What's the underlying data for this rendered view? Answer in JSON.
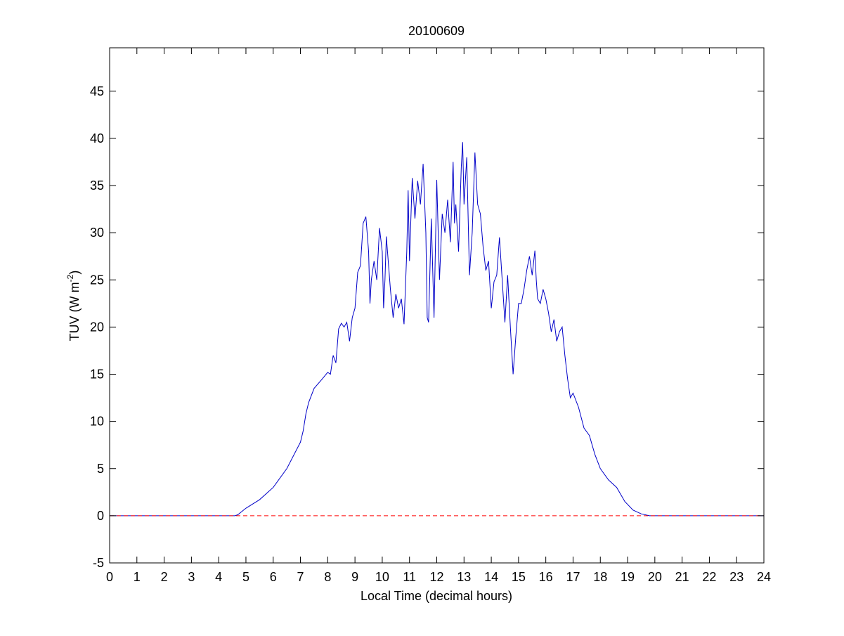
{
  "chart_data": {
    "type": "line",
    "title": "20100609",
    "xlabel": "Local Time (decimal hours)",
    "ylabel": {
      "base": "TUV (W m",
      "sup": "-2",
      "end": ")"
    },
    "xlim": [
      0,
      24
    ],
    "xticks": [
      0,
      1,
      2,
      3,
      4,
      5,
      6,
      7,
      8,
      9,
      10,
      11,
      12,
      13,
      14,
      15,
      16,
      17,
      18,
      19,
      20,
      21,
      22,
      23,
      24
    ],
    "ylim": [
      -5,
      49.6
    ],
    "yticks": [
      -5,
      0,
      5,
      10,
      15,
      20,
      25,
      30,
      35,
      40,
      45
    ],
    "series": [
      {
        "color": "#0000c8",
        "dash": false,
        "x": [
          0,
          1,
          2,
          3,
          4,
          4.6,
          4.7,
          5,
          5.5,
          6,
          6.5,
          7,
          7.1,
          7.2,
          7.3,
          7.5,
          7.8,
          8,
          8.1,
          8.2,
          8.3,
          8.4,
          8.5,
          8.6,
          8.7,
          8.8,
          8.9,
          9,
          9.1,
          9.2,
          9.3,
          9.4,
          9.5,
          9.55,
          9.6,
          9.7,
          9.8,
          9.9,
          10,
          10.05,
          10.1,
          10.15,
          10.3,
          10.4,
          10.5,
          10.6,
          10.7,
          10.8,
          10.9,
          10.95,
          11,
          11.1,
          11.2,
          11.3,
          11.4,
          11.5,
          11.6,
          11.65,
          11.7,
          11.8,
          11.9,
          12,
          12.1,
          12.2,
          12.3,
          12.4,
          12.5,
          12.6,
          12.65,
          12.7,
          12.8,
          12.9,
          12.95,
          13,
          13.1,
          13.2,
          13.3,
          13.4,
          13.5,
          13.6,
          13.7,
          13.8,
          13.9,
          14,
          14.1,
          14.2,
          14.3,
          14.4,
          14.5,
          14.6,
          14.7,
          14.8,
          14.9,
          15,
          15.1,
          15.2,
          15.3,
          15.4,
          15.5,
          15.6,
          15.65,
          15.7,
          15.8,
          15.9,
          16,
          16.1,
          16.2,
          16.3,
          16.4,
          16.5,
          16.6,
          16.7,
          16.8,
          16.9,
          17,
          17.2,
          17.4,
          17.6,
          17.8,
          18,
          18.3,
          18.6,
          18.9,
          19.2,
          19.5,
          19.8,
          21,
          22,
          23,
          24
        ],
        "values": [
          0,
          0,
          0,
          0,
          0,
          0,
          0.1,
          0.8,
          1.7,
          3,
          5,
          7.8,
          9,
          10.8,
          12,
          13.5,
          14.5,
          15.2,
          15,
          17,
          16.2,
          19.8,
          20.4,
          20,
          20.5,
          18.5,
          21,
          22,
          25.8,
          26.5,
          31,
          31.7,
          28,
          22.5,
          25,
          27,
          25,
          30.5,
          28,
          22,
          25,
          29.6,
          24,
          21,
          23.5,
          22,
          23,
          20.3,
          28,
          34.5,
          27,
          35.8,
          31.5,
          35.5,
          33,
          37.3,
          30,
          21,
          20.5,
          31.5,
          21,
          35.6,
          25,
          32,
          30,
          33.5,
          29,
          37.5,
          31,
          33,
          28,
          37,
          39.6,
          33,
          38,
          25.5,
          30,
          38.5,
          33,
          32,
          28.5,
          26,
          27,
          22,
          24.8,
          25.5,
          29.5,
          25,
          20.5,
          25.5,
          20,
          15,
          19,
          22.5,
          22.5,
          24,
          26,
          27.5,
          25.5,
          28.1,
          25,
          23,
          22.5,
          24,
          23,
          21.5,
          19.5,
          20.8,
          18.5,
          19.5,
          20,
          17,
          14.5,
          12.5,
          13,
          11.5,
          9.3,
          8.5,
          6.5,
          5,
          3.8,
          3,
          1.5,
          0.6,
          0.2,
          0,
          0,
          0,
          0,
          0
        ]
      },
      {
        "color": "#ff0000",
        "dash": true,
        "x": [
          0,
          24
        ],
        "values": [
          0,
          0
        ]
      }
    ]
  }
}
